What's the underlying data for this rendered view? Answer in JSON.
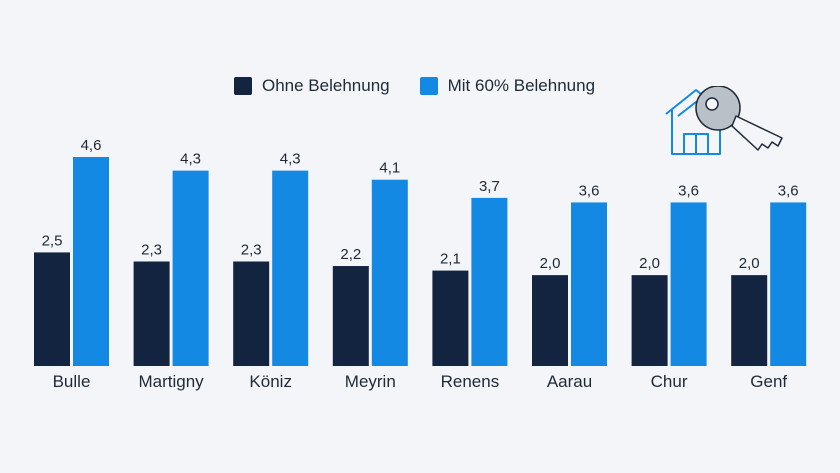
{
  "chart_data": {
    "type": "bar",
    "categories": [
      "Bulle",
      "Martigny",
      "Köniz",
      "Meyrin",
      "Renens",
      "Aarau",
      "Chur",
      "Genf"
    ],
    "series": [
      {
        "name": "Ohne Belehnung",
        "color": "#12243f",
        "values": [
          2.5,
          2.3,
          2.3,
          2.2,
          2.1,
          2.0,
          2.0,
          2.0
        ],
        "labels": [
          "2,5",
          "2,3",
          "2,3",
          "2,2",
          "2,1",
          "2,0",
          "2,0",
          "2,0"
        ]
      },
      {
        "name": "Mit 60% Belehnung",
        "color": "#1489e3",
        "values": [
          4.6,
          4.3,
          4.3,
          4.1,
          3.7,
          3.6,
          3.6,
          3.6
        ],
        "labels": [
          "4,6",
          "4,3",
          "4,3",
          "4,1",
          "3,7",
          "3,6",
          "3,6",
          "3,6"
        ]
      }
    ],
    "ylim": [
      0,
      4.6
    ],
    "grid": false,
    "legend_position": "top-center"
  },
  "icon": "house-key-icon"
}
